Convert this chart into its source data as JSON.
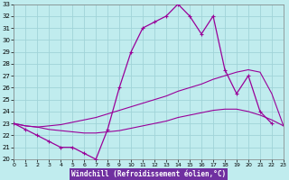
{
  "xlabel": "Windchill (Refroidissement éolien,°C)",
  "background_color": "#c0ecee",
  "grid_color": "#a0d4d8",
  "line_color": "#990099",
  "x": [
    0,
    1,
    2,
    3,
    4,
    5,
    6,
    7,
    8,
    9,
    10,
    11,
    12,
    13,
    14,
    15,
    16,
    17,
    18,
    19,
    20,
    21,
    22,
    23
  ],
  "y_main": [
    23.0,
    22.5,
    22.0,
    21.5,
    21.0,
    21.0,
    20.5,
    20.0,
    22.5,
    26.0,
    29.0,
    31.0,
    31.5,
    32.0,
    33.0,
    32.0,
    30.5,
    32.0,
    27.5,
    25.5,
    27.0,
    24.0,
    23.0,
    null
  ],
  "y_upper": [
    23.0,
    22.8,
    22.7,
    22.8,
    22.9,
    23.1,
    23.3,
    23.5,
    23.8,
    24.1,
    24.4,
    24.7,
    25.0,
    25.3,
    25.7,
    26.0,
    26.3,
    26.7,
    27.0,
    27.3,
    27.5,
    27.3,
    25.5,
    22.8
  ],
  "y_lower": [
    23.0,
    22.8,
    22.7,
    22.5,
    22.4,
    22.3,
    22.2,
    22.2,
    22.3,
    22.4,
    22.6,
    22.8,
    23.0,
    23.2,
    23.5,
    23.7,
    23.9,
    24.1,
    24.2,
    24.2,
    24.0,
    23.7,
    23.3,
    22.8
  ],
  "ylim": [
    20,
    33
  ],
  "xlim": [
    0,
    23
  ],
  "yticks": [
    20,
    21,
    22,
    23,
    24,
    25,
    26,
    27,
    28,
    29,
    30,
    31,
    32,
    33
  ],
  "xticks": [
    0,
    1,
    2,
    3,
    4,
    5,
    6,
    7,
    8,
    9,
    10,
    11,
    12,
    13,
    14,
    15,
    16,
    17,
    18,
    19,
    20,
    21,
    22,
    23
  ],
  "xlabel_bg": "#7030a0",
  "xlabel_color": "#ffffff",
  "tick_fontsize": 5.0,
  "xlabel_fontsize": 5.5
}
